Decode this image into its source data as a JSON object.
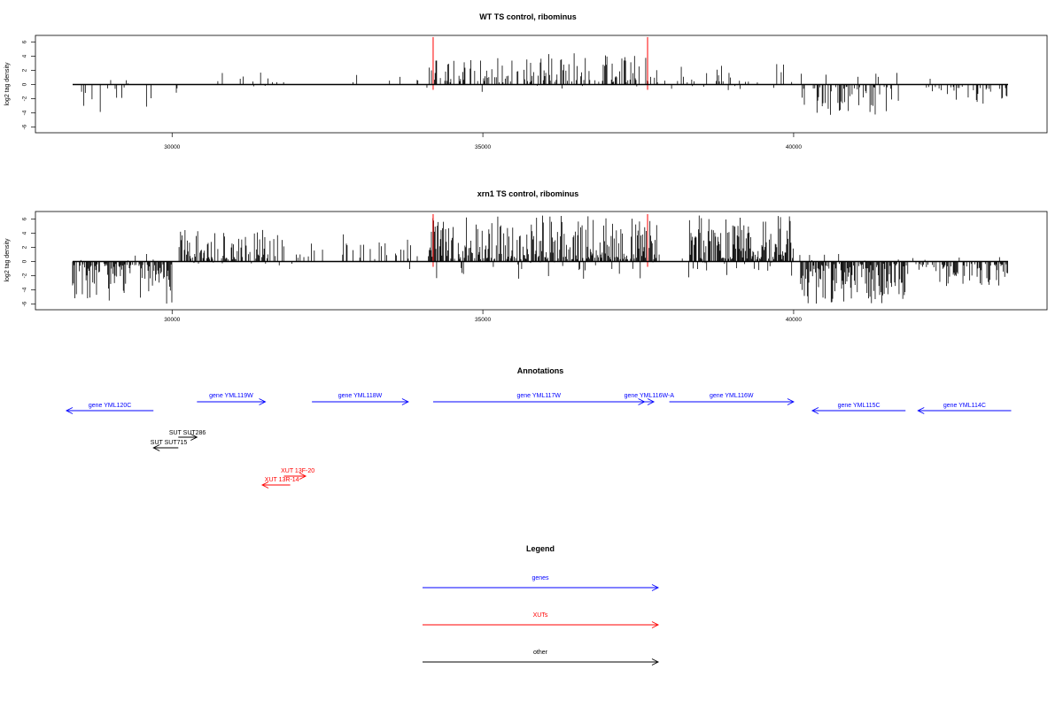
{
  "colors": {
    "genes": "#0000ff",
    "xuts": "#ff0000",
    "other": "#000000",
    "signal": "#000000",
    "highlight": "#ff0000"
  },
  "chart_data": [
    {
      "type": "bar",
      "title": "WT TS control, ribominus",
      "xlabel": "",
      "ylabel": "log2 tag density",
      "xlim": [
        27800,
        43800
      ],
      "ylim": [
        -7,
        7.5
      ],
      "x_ticks": [
        30000,
        35000,
        40000
      ],
      "y_ticks": [
        -6,
        -4,
        -2,
        0,
        2,
        4,
        6
      ],
      "grid": false,
      "highlight_x": [
        34200,
        37650
      ],
      "regions": [
        {
          "start": 28400,
          "end": 30100,
          "sign": -1,
          "max": 4.0,
          "density": 0.12
        },
        {
          "start": 30100,
          "end": 31400,
          "sign": 1,
          "max": 1.8,
          "density": 0.05
        },
        {
          "start": 31400,
          "end": 31650,
          "sign": 1,
          "max": 2.6,
          "density": 0.15
        },
        {
          "start": 31650,
          "end": 34100,
          "sign": 1,
          "max": 2.0,
          "density": 0.06
        },
        {
          "start": 34100,
          "end": 36000,
          "sign": 1,
          "max": 3.8,
          "density": 0.35
        },
        {
          "start": 36000,
          "end": 37700,
          "sign": 1,
          "max": 4.5,
          "density": 0.35
        },
        {
          "start": 37700,
          "end": 40000,
          "sign": 1,
          "max": 3.0,
          "density": 0.18
        },
        {
          "start": 40100,
          "end": 41700,
          "sign": -1,
          "max": 4.4,
          "density": 0.4
        },
        {
          "start": 41700,
          "end": 42100,
          "sign": 1,
          "max": 1.6,
          "density": 0.03
        },
        {
          "start": 42100,
          "end": 43450,
          "sign": -1,
          "max": 2.8,
          "density": 0.3
        }
      ]
    },
    {
      "type": "bar",
      "title": "xrn1 TS control, ribominus",
      "xlabel": "",
      "ylabel": "log2 tag density",
      "xlim": [
        27800,
        43800
      ],
      "ylim": [
        -7,
        7.5
      ],
      "x_ticks": [
        30000,
        35000,
        40000
      ],
      "y_ticks": [
        -6,
        -4,
        -2,
        0,
        2,
        4,
        6
      ],
      "grid": false,
      "highlight_x": [
        34200,
        37650
      ],
      "regions": [
        {
          "start": 28400,
          "end": 30000,
          "sign": -1,
          "max": 6.2,
          "density": 0.6
        },
        {
          "start": 30100,
          "end": 31700,
          "sign": 1,
          "max": 4.5,
          "density": 0.55
        },
        {
          "start": 31700,
          "end": 34100,
          "sign": 1,
          "max": 4.0,
          "density": 0.2
        },
        {
          "start": 34100,
          "end": 37800,
          "sign": 1,
          "max": 6.5,
          "density": 0.8
        },
        {
          "start": 37800,
          "end": 38300,
          "sign": 1,
          "max": 1.5,
          "density": 0.1
        },
        {
          "start": 38300,
          "end": 40000,
          "sign": 1,
          "max": 6.5,
          "density": 0.9
        },
        {
          "start": 40100,
          "end": 41800,
          "sign": -1,
          "max": 6.0,
          "density": 0.85
        },
        {
          "start": 41800,
          "end": 42400,
          "sign": -1,
          "max": 3.0,
          "density": 0.3
        },
        {
          "start": 42400,
          "end": 43450,
          "sign": -1,
          "max": 3.6,
          "density": 0.6
        }
      ]
    }
  ],
  "annotations": {
    "title": "Annotations",
    "features": [
      {
        "label": "gene YML120C",
        "type": "genes",
        "start": 28300,
        "end": 29700,
        "strand": "-"
      },
      {
        "label": "gene YML119W",
        "type": "genes",
        "start": 30400,
        "end": 31500,
        "strand": "+"
      },
      {
        "label": "gene YML118W",
        "type": "genes",
        "start": 32250,
        "end": 33800,
        "strand": "+"
      },
      {
        "label": "gene YML117W",
        "type": "genes",
        "start": 34200,
        "end": 37600,
        "strand": "+"
      },
      {
        "label": "gene YML116W-A",
        "type": "genes",
        "start": 37600,
        "end": 37750,
        "strand": "+"
      },
      {
        "label": "gene YML116W",
        "type": "genes",
        "start": 38000,
        "end": 40000,
        "strand": "+"
      },
      {
        "label": "gene YML115C",
        "type": "genes",
        "start": 40300,
        "end": 41800,
        "strand": "-"
      },
      {
        "label": "gene YML114C",
        "type": "genes",
        "start": 42000,
        "end": 43500,
        "strand": "-"
      },
      {
        "label": "SUT SUT286",
        "type": "other",
        "start": 30100,
        "end": 30400,
        "strand": "+"
      },
      {
        "label": "SUT SUT715",
        "type": "other",
        "start": 29700,
        "end": 30100,
        "strand": "-"
      },
      {
        "label": "XUT 13F-20",
        "type": "xuts",
        "start": 31800,
        "end": 32150,
        "strand": "+"
      },
      {
        "label": "XUT 13R-14",
        "type": "xuts",
        "start": 31450,
        "end": 31900,
        "strand": "-"
      }
    ]
  },
  "legend": {
    "title": "Legend",
    "items": [
      {
        "label": "genes",
        "type": "genes"
      },
      {
        "label": "XUTs",
        "type": "xuts"
      },
      {
        "label": "other",
        "type": "other"
      }
    ]
  }
}
